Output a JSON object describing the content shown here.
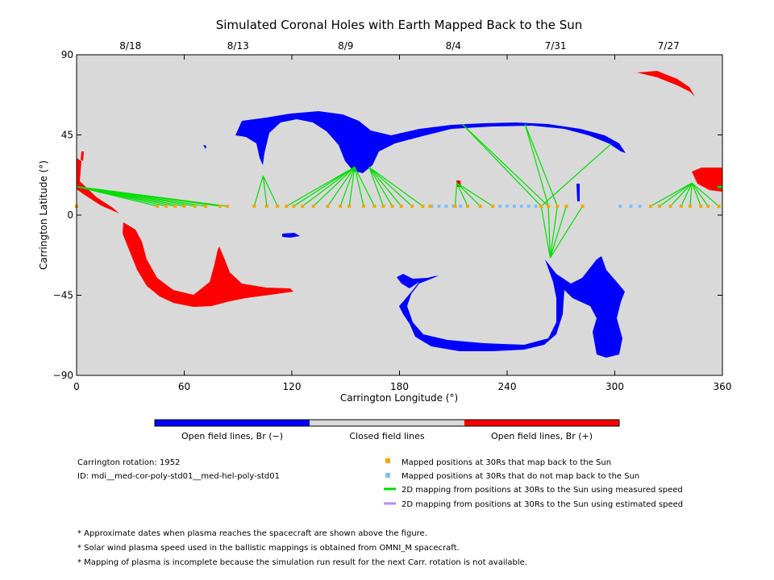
{
  "chart_data": {
    "type": "map",
    "title": "Simulated Coronal Holes with Earth Mapped Back to the Sun",
    "xlabel": "Carrington Longitude (°)",
    "ylabel": "Carrington Latitude (°)",
    "xlim": [
      0,
      360
    ],
    "ylim": [
      -90,
      90
    ],
    "x_ticks": [
      "0",
      "60",
      "120",
      "180",
      "240",
      "300",
      "360"
    ],
    "y_ticks": [
      "90",
      "45",
      "0",
      "−45",
      "−90"
    ],
    "top_axis_dates": [
      {
        "label": "8/18",
        "lon": 30
      },
      {
        "label": "8/13",
        "lon": 90
      },
      {
        "label": "8/9",
        "lon": 150
      },
      {
        "label": "8/4",
        "lon": 210
      },
      {
        "label": "7/31",
        "lon": 267
      },
      {
        "label": "7/27",
        "lon": 330
      }
    ],
    "colors": {
      "open_negative": "#0000ff",
      "closed": "#d9d9d9",
      "open_positive": "#ff0000",
      "mapped": "#f0a800",
      "not_mapped": "#7fbfff",
      "measured_speed": "#00dd00",
      "estimated_speed": "#bb88ee"
    },
    "colorbar": {
      "neg_label": "Open field lines, Br (−)",
      "closed_label": "Closed field lines",
      "pos_label": "Open field lines, Br (+)"
    },
    "mapped_positions_lon": [
      0,
      45,
      50,
      55,
      60,
      66,
      72,
      80,
      84,
      99,
      106,
      112,
      117,
      121,
      126,
      132,
      140,
      147,
      152,
      160,
      166,
      171,
      176,
      181,
      187,
      193,
      197,
      211,
      218,
      225,
      232,
      259,
      263,
      268,
      273,
      282,
      320,
      325,
      331,
      337,
      342,
      348,
      352,
      358
    ],
    "not_mapped_positions_lon": [
      198,
      202,
      206,
      210,
      214,
      236,
      240,
      244,
      248,
      252,
      256,
      303,
      309,
      314
    ],
    "footpoints": [
      {
        "lat": 16,
        "lon": 0,
        "targets": [
          45,
          50,
          55,
          60,
          66,
          72,
          80,
          84
        ]
      },
      {
        "lat": 22,
        "lon": 104,
        "targets": [
          99,
          106,
          112
        ]
      },
      {
        "lat": 27,
        "lon": 155,
        "targets": [
          117,
          121,
          126,
          132,
          140,
          147,
          152,
          160,
          166
        ]
      },
      {
        "lat": 27,
        "lon": 163,
        "targets": [
          171,
          176,
          181,
          187,
          193
        ]
      },
      {
        "lat": 18,
        "lon": 212,
        "targets": [
          211,
          218,
          225,
          232
        ]
      },
      {
        "lat": 51,
        "lon": 215,
        "targets": [
          259,
          263
        ]
      },
      {
        "lat": 51,
        "lon": 250,
        "targets": [
          263,
          268
        ]
      },
      {
        "lat": 40,
        "lon": 298,
        "targets": [
          259
        ]
      },
      {
        "lat": -24,
        "lon": 264,
        "targets": [
          259,
          263,
          268,
          273,
          282
        ]
      },
      {
        "lat": 18,
        "lon": 343,
        "targets": [
          320,
          325,
          331,
          337,
          342,
          348,
          352,
          358
        ]
      }
    ]
  },
  "legend": {
    "mapped": "Mapped positions at 30Rs that map back to the Sun",
    "not_mapped": "Mapped positions at 30Rs that do not map back to the Sun",
    "measured": "2D mapping from positions at 30Rs to the Sun using measured speed",
    "estimated": "2D mapping from positions at 30Rs to the Sun using estimated speed"
  },
  "info": {
    "rotation": "Carrington rotation: 1952",
    "id": "ID: mdi__med-cor-poly-std01__med-hel-poly-std01"
  },
  "notes": [
    "* Approximate dates when plasma reaches the spacecraft are shown above the figure.",
    "* Solar wind plasma speed used in the ballistic mappings is obtained from OMNI_M spacecraft.",
    "* Mapping of plasma is incomplete because the simulation run result for the next Carr. rotation is not available."
  ]
}
